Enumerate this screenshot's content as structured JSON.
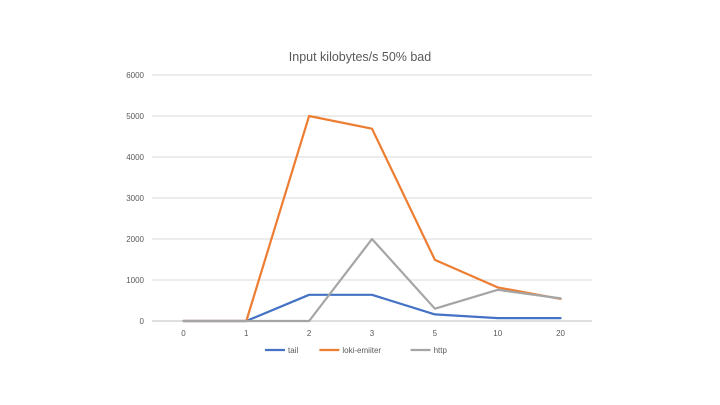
{
  "chart_data": {
    "type": "line",
    "title": "Input kilobytes/s 50% bad",
    "xlabel": "",
    "ylabel": "",
    "categories": [
      "0",
      "1",
      "2",
      "3",
      "5",
      "10",
      "20"
    ],
    "ylim": [
      0,
      6000
    ],
    "yticks": [
      0,
      1000,
      2000,
      3000,
      4000,
      5000,
      6000
    ],
    "grid": true,
    "legend_position": "bottom",
    "series": [
      {
        "name": "tail",
        "color": "#4472C4",
        "values": [
          0,
          0,
          640,
          640,
          160,
          70,
          70
        ]
      },
      {
        "name": "loki-emiiter",
        "color": "#ED7D31",
        "values": [
          0,
          0,
          5000,
          4690,
          1490,
          820,
          540
        ]
      },
      {
        "name": "http",
        "color": "#A5A5A5",
        "values": [
          0,
          0,
          0,
          2000,
          300,
          760,
          550
        ]
      }
    ]
  }
}
